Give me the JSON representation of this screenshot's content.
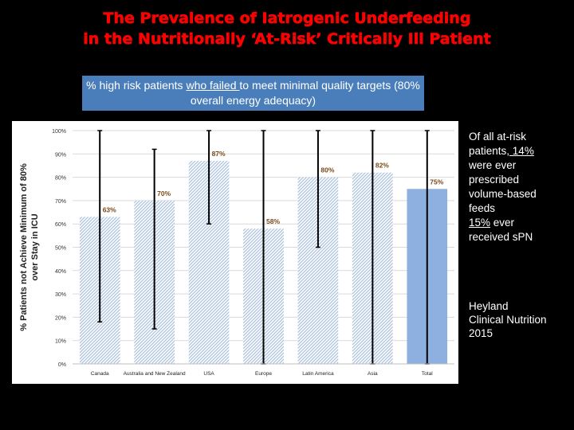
{
  "slide": {
    "title_line1": "The Prevalence of Iatrogenic Underfeeding",
    "title_line2": "in the Nutritionally ‘At-Risk’ Critically Ill Patient",
    "subtitle_part1": "% high risk patients ",
    "subtitle_underlined": "who failed ",
    "subtitle_part2": "to meet minimal quality targets (80% overall energy adequacy)",
    "note_line1": "Of all at-risk",
    "note_line2_a": "patients",
    "note_line2_b": ", 14%",
    "note_line3": "were ever",
    "note_line4": "prescribed",
    "note_line5": "volume-based",
    "note_line6": "feeds",
    "note_line7_a": "15%",
    "note_line7_b": " ever",
    "note_line8": "received sPN",
    "citation_line1": "Heyland",
    "citation_line2": "Clinical Nutrition",
    "citation_line3": "2015"
  },
  "colors": {
    "title": "#ff0000",
    "subtitle_bg": "#4a7ebb",
    "bar_pattern": "#a9c0dc",
    "total_bar": "#8eb0e0",
    "label": "#7a4a1a",
    "error_bar": "#000000"
  },
  "chart_data": {
    "type": "bar",
    "ylabel_line1": "% Patients not Achieve Minimum of 80%",
    "ylabel_line2": "over Stay in ICU",
    "ylim": [
      0,
      100
    ],
    "yticks": [
      "0%",
      "10%",
      "20%",
      "30%",
      "40%",
      "50%",
      "60%",
      "70%",
      "80%",
      "90%",
      "100%"
    ],
    "categories": [
      "Canada",
      "Australia and New Zealand",
      "USA",
      "Europe",
      "Latin America",
      "Asia",
      "Total"
    ],
    "values": [
      63,
      70,
      87,
      58,
      80,
      82,
      75
    ],
    "labels": [
      "63%",
      "70%",
      "87%",
      "58%",
      "80%",
      "82%",
      "75%"
    ],
    "error_low": [
      18,
      15,
      60,
      0,
      50,
      0,
      0
    ],
    "error_high": [
      100,
      92,
      100,
      100,
      100,
      100,
      100
    ],
    "patterned": [
      true,
      true,
      true,
      true,
      true,
      true,
      false
    ]
  }
}
